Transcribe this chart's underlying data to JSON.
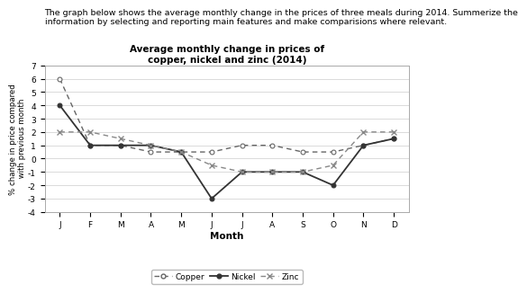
{
  "title_line1": "Average monthly change in prices of",
  "title_line2": "copper, nickel and zinc (2014)",
  "xlabel": "Month",
  "ylabel": "% change in price compared\n with previous month",
  "months": [
    "J",
    "F",
    "M",
    "A",
    "M",
    "J",
    "J",
    "A",
    "S",
    "O",
    "N",
    "D"
  ],
  "copper": [
    6,
    1,
    1,
    0.5,
    0.5,
    0.5,
    1,
    1,
    0.5,
    0.5,
    1,
    1.5
  ],
  "nickel": [
    4,
    1,
    1,
    1,
    0.5,
    -3,
    -1,
    -1,
    -1,
    -2,
    1,
    1.5
  ],
  "zinc": [
    2,
    2,
    1.5,
    1,
    0.5,
    -0.5,
    -1,
    -1,
    -1,
    -0.5,
    2,
    2
  ],
  "ylim": [
    -4,
    7
  ],
  "yticks": [
    -4,
    -3,
    -2,
    -1,
    0,
    1,
    2,
    3,
    4,
    5,
    6,
    7
  ],
  "background_color": "#ffffff",
  "text_color": "#000000",
  "description_line1": "The graph below shows the average monthly change in the prices of three meals during 2014. Summerize the",
  "description_line2": "information by selecting and reporting main features and make comparisions where relevant."
}
